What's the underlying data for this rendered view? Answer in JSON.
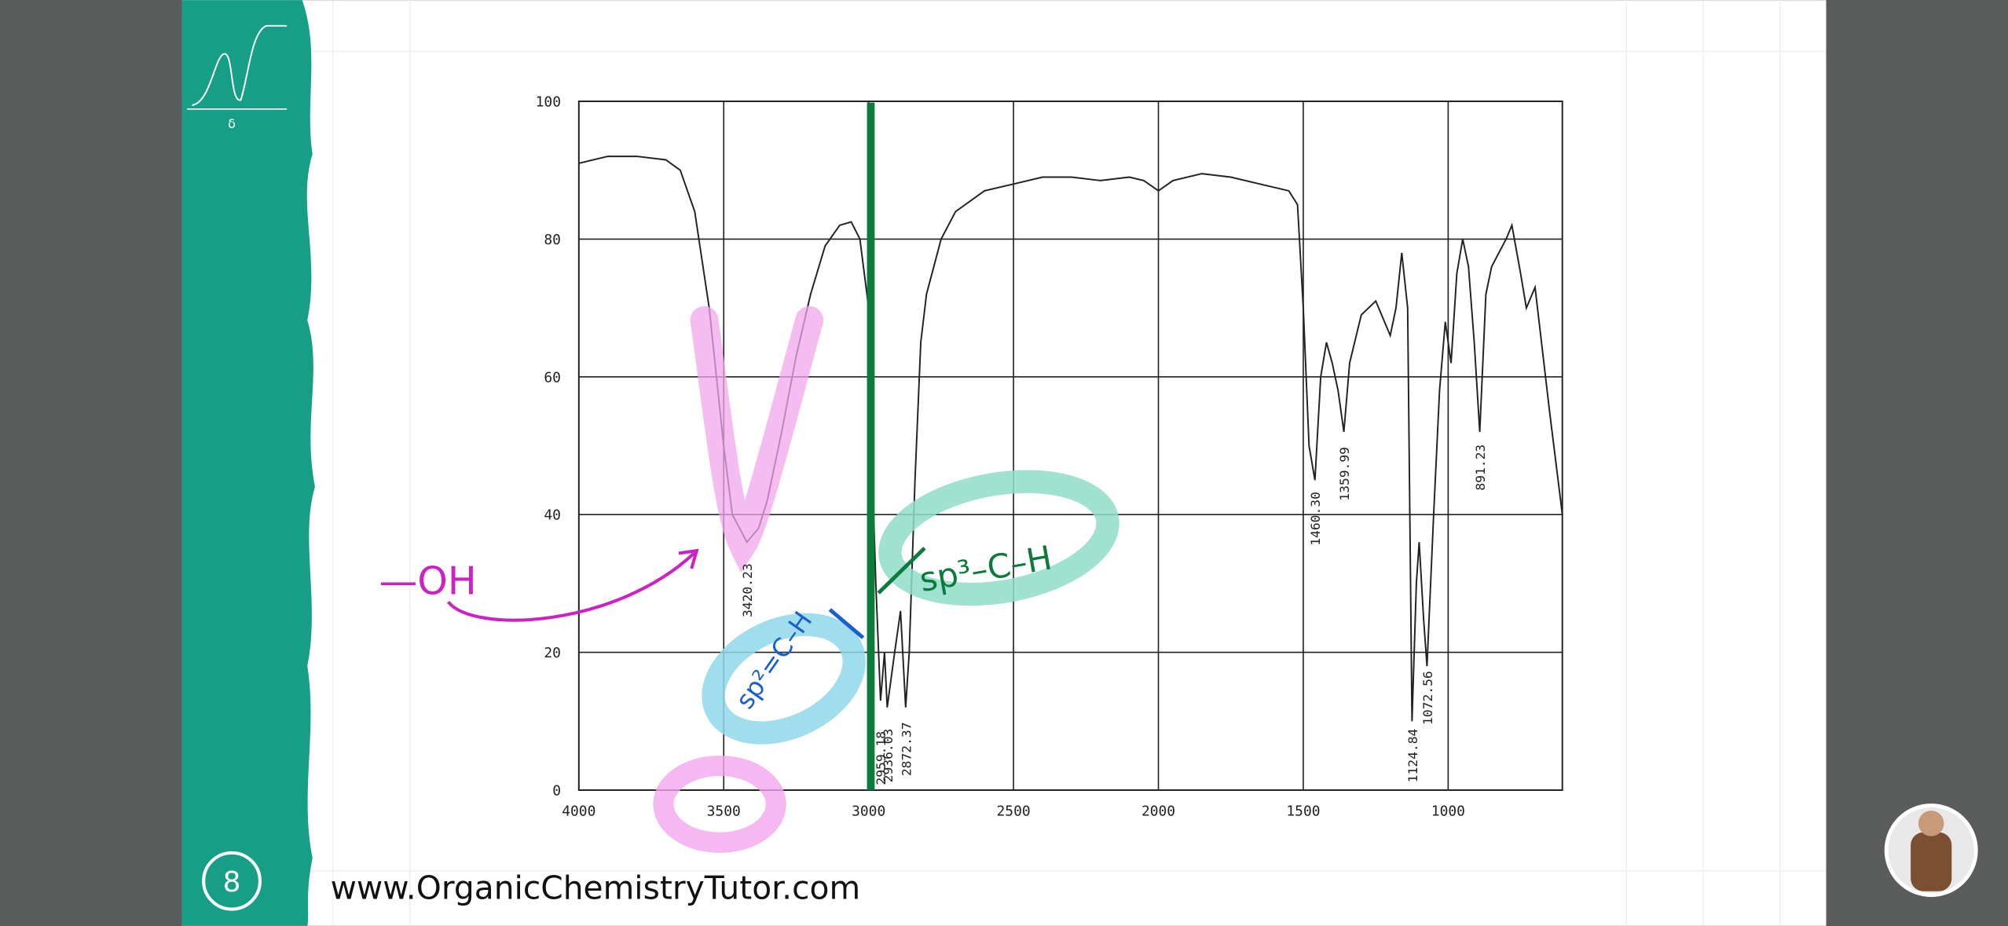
{
  "chart_data": {
    "type": "line",
    "x": [
      4000,
      3900,
      3800,
      3700,
      3650,
      3600,
      3550,
      3500,
      3470,
      3420,
      3380,
      3350,
      3300,
      3250,
      3200,
      3150,
      3100,
      3060,
      3030,
      3000,
      2990,
      2975,
      2959,
      2945,
      2936,
      2910,
      2890,
      2872,
      2860,
      2840,
      2820,
      2800,
      2750,
      2700,
      2600,
      2500,
      2400,
      2300,
      2200,
      2100,
      2050,
      2000,
      1950,
      1850,
      1750,
      1650,
      1550,
      1520,
      1500,
      1480,
      1460,
      1440,
      1420,
      1400,
      1380,
      1360,
      1340,
      1300,
      1250,
      1200,
      1180,
      1160,
      1140,
      1125,
      1110,
      1100,
      1085,
      1073,
      1050,
      1030,
      1010,
      990,
      970,
      950,
      930,
      910,
      891,
      870,
      850,
      800,
      780,
      750,
      730,
      700,
      650,
      606
    ],
    "values": [
      91,
      92,
      92,
      91.5,
      90,
      84,
      70,
      50,
      40,
      36,
      38,
      42,
      52,
      63,
      72,
      79,
      82,
      82.5,
      80,
      70,
      50,
      30,
      13,
      20,
      12,
      20,
      26,
      12,
      20,
      45,
      65,
      72,
      80,
      84,
      87,
      88,
      89,
      89,
      88.5,
      89,
      88.5,
      87,
      88.5,
      89.5,
      89,
      88,
      87,
      85,
      70,
      50,
      45,
      60,
      65,
      62,
      58,
      52,
      62,
      69,
      71,
      66,
      70,
      78,
      70,
      10,
      30,
      36,
      25,
      18,
      40,
      58,
      68,
      62,
      75,
      80,
      76,
      65,
      52,
      72,
      76,
      80,
      82,
      75,
      70,
      73,
      55,
      40
    ],
    "color": "#222222",
    "xlim": [
      4000,
      606
    ],
    "ylim": [
      0,
      100
    ],
    "xticks": [
      4000,
      3500,
      3000,
      2500,
      2000,
      1500,
      1000
    ],
    "yticks": [
      0,
      20,
      40,
      60,
      80,
      100
    ],
    "grid": true,
    "peak_labels": [
      "3420.23",
      "2959.18",
      "2936.03",
      "2872.37",
      "1460.30",
      "1359.99",
      "1124.84",
      "1072.56",
      "891.23"
    ],
    "annotations": {
      "oh": "—OH",
      "sp3": "sp³–C–H",
      "sp2": "sp²=C–H"
    }
  },
  "page": {
    "logo": "δ",
    "slide_number": "8",
    "website": "www.OrganicChemistryTutor.com"
  }
}
